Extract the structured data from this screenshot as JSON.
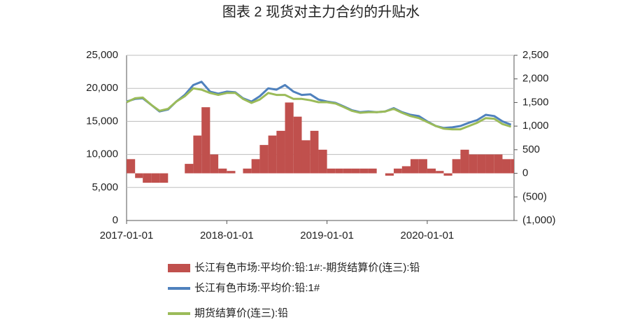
{
  "chart_data": {
    "type": "combo",
    "title": "图表 2 现货对主力合约的升贴水",
    "x": [
      "2017-01-01",
      "2017-02-01",
      "2017-03-01",
      "2017-04-01",
      "2017-05-01",
      "2017-06-01",
      "2017-07-01",
      "2017-08-01",
      "2017-09-01",
      "2017-10-01",
      "2017-11-01",
      "2017-12-01",
      "2018-01-01",
      "2018-02-01",
      "2018-03-01",
      "2018-04-01",
      "2018-05-01",
      "2018-06-01",
      "2018-07-01",
      "2018-08-01",
      "2018-09-01",
      "2018-10-01",
      "2018-11-01",
      "2018-12-01",
      "2019-01-01",
      "2019-02-01",
      "2019-03-01",
      "2019-04-01",
      "2019-05-01",
      "2019-06-01",
      "2019-07-01",
      "2019-08-01",
      "2019-09-01",
      "2019-10-01",
      "2019-11-01",
      "2019-12-01",
      "2020-01-01",
      "2020-02-01",
      "2020-03-01",
      "2020-04-01",
      "2020-05-01",
      "2020-06-01",
      "2020-07-01",
      "2020-08-01",
      "2020-09-01",
      "2020-10-01",
      "2020-11-01"
    ],
    "xlim": [
      "2017-01-01",
      "2020-11-12"
    ],
    "xticks": [
      "2017-01-01",
      "2018-01-01",
      "2019-01-01",
      "2020-01-01"
    ],
    "ylim": [
      0,
      25000
    ],
    "yticks": [
      0,
      {
        "value": 5000,
        "label": "5,000"
      },
      {
        "value": 10000,
        "label": "10,000"
      },
      {
        "value": 15000,
        "label": "15,000"
      },
      {
        "value": 20000,
        "label": "20,000"
      },
      {
        "value": 25000,
        "label": "25,000"
      }
    ],
    "y2lim": [
      -1000,
      2500
    ],
    "y2ticks": [
      {
        "value": -1000,
        "label": "(1,000)",
        "color": "#d9281e"
      },
      {
        "value": -500,
        "label": "(500)",
        "color": "#d9281e"
      },
      0,
      500,
      {
        "value": 1000,
        "label": "1,000"
      },
      {
        "value": 1500,
        "label": "1,500"
      },
      {
        "value": 2000,
        "label": "2,000"
      },
      {
        "value": 2500,
        "label": "2,500"
      }
    ],
    "grid": true,
    "legend": "bottom",
    "series": [
      {
        "name": "长江有色市场:平均价:铅:1#:-期货结算价(连三):铅",
        "type": "bar",
        "axis": "y2",
        "color": "#c0504d",
        "values": [
          300,
          -100,
          -200,
          -200,
          -200,
          0,
          0,
          200,
          800,
          1400,
          400,
          100,
          50,
          0,
          100,
          300,
          600,
          800,
          900,
          1500,
          1200,
          700,
          900,
          500,
          100,
          100,
          100,
          100,
          100,
          100,
          0,
          -50,
          100,
          150,
          300,
          300,
          100,
          50,
          -50,
          300,
          500,
          400,
          400,
          400,
          400,
          300,
          300
        ]
      },
      {
        "name": "长江有色市场:平均价:铅:1#",
        "type": "line",
        "color": "#4f81bd",
        "values": [
          18000,
          18400,
          18500,
          17500,
          16500,
          16800,
          18000,
          19000,
          20500,
          21000,
          19500,
          19200,
          19500,
          19400,
          18500,
          18000,
          18800,
          20000,
          19800,
          20500,
          19500,
          19000,
          19100,
          18300,
          18000,
          17800,
          17300,
          16700,
          16400,
          16500,
          16400,
          16500,
          17000,
          16400,
          16000,
          15800,
          15000,
          14300,
          14000,
          14100,
          14300,
          14800,
          15200,
          16000,
          15800,
          15000,
          14500
        ]
      },
      {
        "name": "期货结算价(连三):铅",
        "type": "line",
        "color": "#9bbb59",
        "values": [
          17900,
          18500,
          18600,
          17500,
          16600,
          16900,
          18000,
          18800,
          20000,
          19800,
          19300,
          19000,
          19300,
          19300,
          18400,
          17800,
          18300,
          19300,
          19000,
          19000,
          18400,
          18400,
          18200,
          17900,
          17900,
          17700,
          17200,
          16600,
          16300,
          16400,
          16400,
          16500,
          16900,
          16300,
          15800,
          15500,
          14900,
          14300,
          13900,
          13800,
          13800,
          14300,
          14800,
          15500,
          15400,
          14600,
          14200
        ]
      }
    ]
  }
}
